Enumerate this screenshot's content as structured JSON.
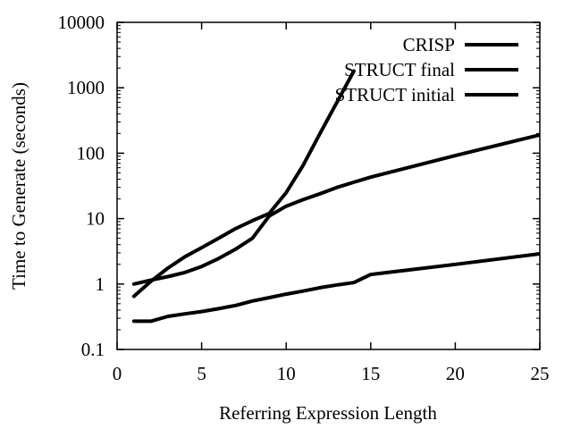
{
  "chart_data": {
    "type": "line",
    "xlabel": "Referring Expression Length",
    "ylabel": "Time to Generate (seconds)",
    "xlim": [
      0,
      25
    ],
    "ylim": [
      0.1,
      10000
    ],
    "y_scale": "log",
    "grid": false,
    "legend_position": "top-right",
    "x_ticks": [
      0,
      5,
      10,
      15,
      20,
      25
    ],
    "x_tick_labels": [
      "0",
      "5",
      "10",
      "15",
      "20",
      "25"
    ],
    "y_ticks": [
      0.1,
      1,
      10,
      100,
      1000,
      10000
    ],
    "y_tick_labels": [
      "0.1",
      "1",
      "10",
      "100",
      "1000",
      "10000"
    ],
    "series": [
      {
        "name": "CRISP",
        "x": [
          1,
          2,
          3,
          4,
          5,
          6,
          7,
          8,
          9,
          10,
          11,
          12,
          13,
          14
        ],
        "y": [
          0.65,
          1.1,
          1.75,
          2.6,
          3.6,
          5.0,
          7.0,
          9.3,
          12.0,
          25,
          65,
          200,
          600,
          1800
        ]
      },
      {
        "name": "STRUCT final",
        "x": [
          1,
          2,
          3,
          4,
          5,
          6,
          7,
          8,
          9,
          10,
          11,
          12,
          13,
          14,
          15,
          20,
          25
        ],
        "y": [
          1.0,
          1.15,
          1.3,
          1.5,
          1.85,
          2.45,
          3.4,
          5.0,
          11.0,
          15.5,
          19.5,
          24,
          30,
          36,
          43,
          92,
          190
        ]
      },
      {
        "name": "STRUCT initial",
        "x": [
          1,
          2,
          3,
          4,
          5,
          6,
          7,
          8,
          9,
          10,
          11,
          12,
          13,
          14,
          15,
          20,
          25
        ],
        "y": [
          0.27,
          0.27,
          0.32,
          0.35,
          0.38,
          0.42,
          0.47,
          0.55,
          0.62,
          0.7,
          0.78,
          0.88,
          0.97,
          1.05,
          1.4,
          2.0,
          2.9
        ]
      }
    ],
    "line_color": "#000000"
  }
}
